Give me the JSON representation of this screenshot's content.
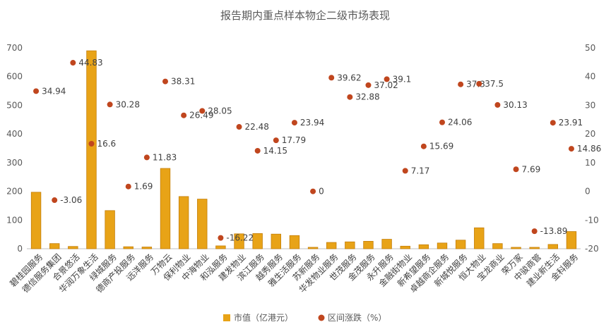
{
  "chart_data": {
    "type": "bar+scatter",
    "title": "报告期内重点样本物企二级市场表现",
    "categories": [
      "碧桂园服务",
      "德信服务集团",
      "合景悠活",
      "华润万象生活",
      "绿城服务",
      "德商产投服务",
      "远洋服务",
      "万物云",
      "保利物业",
      "中海物业",
      "和泓服务",
      "建发物业",
      "滨江服务",
      "越秀服务",
      "雅生活服务",
      "苏新服务",
      "华发物业服务",
      "世茂服务",
      "金茂服务",
      "永升服务",
      "金融街物业",
      "新希望服务",
      "卓越商企服务",
      "新城悦服务",
      "恒大物业",
      "宝龙商业",
      "荣万家",
      "中骏商管",
      "建业新生活",
      "金科服务"
    ],
    "series": [
      {
        "name": "市值（亿港元）",
        "type": "bar",
        "axis": "left",
        "color": "#E8A317",
        "values": [
          197,
          18,
          8,
          690,
          133,
          7,
          6,
          280,
          182,
          173,
          10,
          52,
          53,
          51,
          46,
          5,
          22,
          24,
          26,
          33,
          9,
          14,
          20,
          30,
          73,
          18,
          5,
          5,
          15,
          60
        ]
      },
      {
        "name": "区间涨跌（%）",
        "type": "scatter",
        "axis": "right",
        "color": "#C0461E",
        "values": [
          34.94,
          -3.06,
          44.83,
          16.6,
          30.28,
          1.69,
          11.83,
          38.31,
          26.49,
          28.05,
          -16.22,
          22.48,
          14.15,
          17.79,
          23.94,
          0,
          39.62,
          32.88,
          37.02,
          39.1,
          7.17,
          15.69,
          24.06,
          37.3,
          37.5,
          30.13,
          7.69,
          -13.89,
          23.91,
          14.86
        ],
        "labels": [
          "34.94",
          "-3.06",
          "44.83",
          "16.6",
          "30.28",
          "1.69",
          "11.83",
          "38.31",
          "26.49",
          "28.05",
          "-16.22",
          "22.48",
          "14.15",
          "17.79",
          "23.94",
          "0",
          "39.62",
          "32.88",
          "37.02",
          "39.1",
          "7.17",
          "15.69",
          "24.06",
          "37.3",
          "37.5",
          "30.13",
          "7.69",
          "-13.89",
          "23.91",
          "14.86"
        ]
      }
    ],
    "y_left": {
      "min": 0,
      "max": 700,
      "ticks": [
        0,
        100,
        200,
        300,
        400,
        500,
        600,
        700
      ]
    },
    "y_right": {
      "min": -20,
      "max": 50,
      "ticks": [
        -20,
        -10,
        0,
        10,
        20,
        30,
        40,
        50
      ]
    },
    "grid": false,
    "legend_position": "bottom"
  }
}
